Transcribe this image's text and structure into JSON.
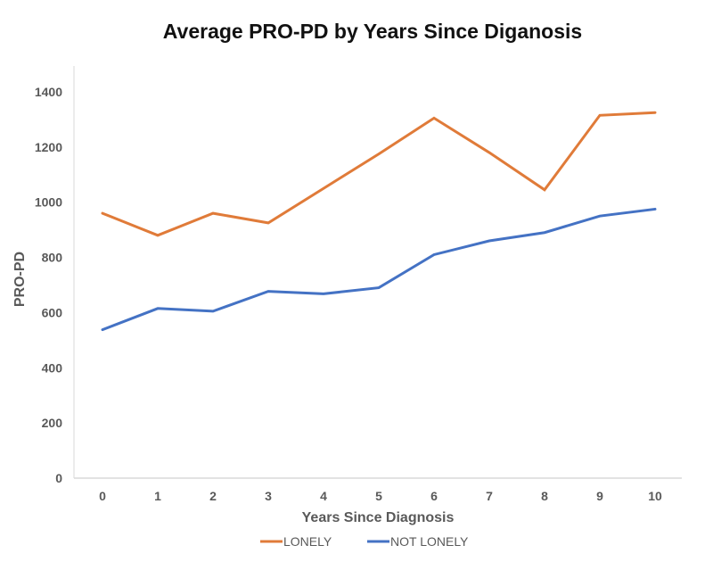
{
  "chart_data": {
    "type": "line",
    "title": "Average PRO-PD by Years Since Diganosis",
    "xlabel": "Years Since Diagnosis",
    "ylabel": "PRO-PD",
    "x": [
      0,
      1,
      2,
      3,
      4,
      5,
      6,
      7,
      8,
      9,
      10
    ],
    "x_tick_labels": [
      "0",
      "1",
      "2",
      "3",
      "4",
      "5",
      "6",
      "7",
      "8",
      "9",
      "10"
    ],
    "ylim": [
      0,
      1400
    ],
    "y_ticks": [
      0,
      200,
      400,
      600,
      800,
      1000,
      1200,
      1400
    ],
    "y_tick_labels": [
      "0",
      "200",
      "400",
      "600",
      "800",
      "1000",
      "1200",
      "1400"
    ],
    "grid": false,
    "legend_position": "bottom",
    "series": [
      {
        "name": "LONELY",
        "color": "#E07B39",
        "values": [
          960,
          880,
          960,
          925,
          1050,
          1175,
          1305,
          1180,
          1045,
          1315,
          1325
        ]
      },
      {
        "name": "NOT LONELY",
        "color": "#4472C4",
        "values": [
          538,
          615,
          605,
          677,
          668,
          690,
          810,
          860,
          890,
          950,
          975
        ]
      }
    ]
  }
}
